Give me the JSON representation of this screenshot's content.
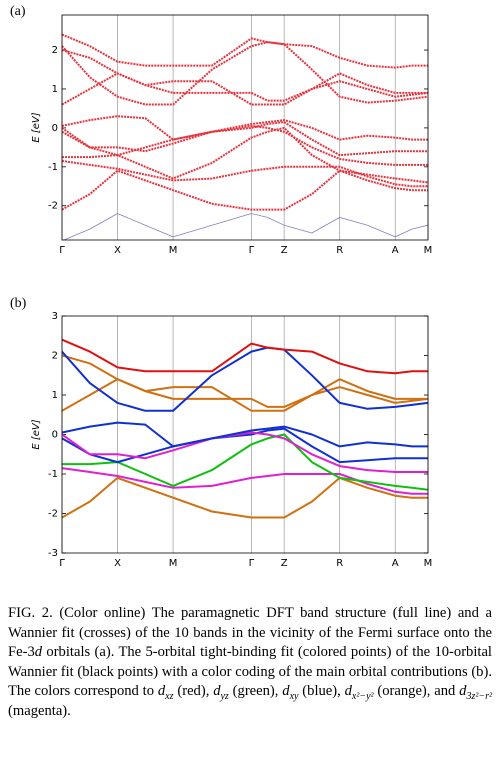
{
  "chart_data": [
    {
      "type": "line",
      "panel_label": "(a)",
      "ylabel": "E [eV]",
      "x": [
        0,
        0.5,
        1,
        1.5,
        2,
        2.7,
        3.41,
        3.7,
        4,
        4.5,
        5,
        5.5,
        6,
        6.3,
        6.59
      ],
      "xlim": [
        0,
        6.59
      ],
      "ylim": [
        -2.88,
        2.9
      ],
      "xticks": [
        {
          "value": 0,
          "label": "Γ"
        },
        {
          "value": 1,
          "label": "X"
        },
        {
          "value": 2,
          "label": "M"
        },
        {
          "value": 3.41,
          "label": "Γ"
        },
        {
          "value": 4,
          "label": "Z"
        },
        {
          "value": 5,
          "label": "R"
        },
        {
          "value": 6,
          "label": "A"
        },
        {
          "value": 6.59,
          "label": "M"
        }
      ],
      "yticks": [
        -2,
        -1,
        0,
        1,
        2
      ],
      "grid": true,
      "series": [
        {
          "color": "#8080c0",
          "values": [
            -2.9,
            -2.6,
            -2.2,
            -2.5,
            -2.8,
            -2.5,
            -2.2,
            -2.3,
            -2.5,
            -2.7,
            -2.3,
            -2.5,
            -2.8,
            -2.6,
            -2.5
          ]
        },
        {
          "color": "#e8323c",
          "values": [
            -2.1,
            -1.7,
            -1.1,
            -1.35,
            -1.6,
            -1.95,
            -2.1,
            -2.1,
            -2.1,
            -1.7,
            -1.1,
            -1.35,
            -1.55,
            -1.6,
            -1.6
          ]
        },
        {
          "color": "#e8323c",
          "values": [
            -0.85,
            -0.95,
            -1.05,
            -1.2,
            -1.35,
            -1.3,
            -1.1,
            -1.05,
            -1.0,
            -1.0,
            -1.0,
            -1.25,
            -1.45,
            -1.5,
            -1.5
          ]
        },
        {
          "color": "#e8323c",
          "values": [
            -0.75,
            -0.75,
            -0.7,
            -1.0,
            -1.3,
            -0.9,
            -0.25,
            -0.1,
            0.0,
            -0.7,
            -1.1,
            -1.2,
            -1.3,
            -1.35,
            -1.4
          ]
        },
        {
          "color": "#e8323c",
          "values": [
            -0.1,
            -0.5,
            -0.7,
            -0.5,
            -0.3,
            -0.1,
            0.0,
            0.1,
            0.15,
            -0.3,
            -0.7,
            -0.65,
            -0.6,
            -0.6,
            -0.6
          ]
        },
        {
          "color": "#e8323c",
          "values": [
            0.0,
            -0.5,
            -0.5,
            -0.6,
            -0.4,
            -0.1,
            0.05,
            0.0,
            -0.1,
            -0.5,
            -0.8,
            -0.9,
            -0.95,
            -0.95,
            -0.95
          ]
        },
        {
          "color": "#e8323c",
          "values": [
            0.05,
            0.2,
            0.3,
            0.25,
            -0.3,
            -0.1,
            0.1,
            0.15,
            0.2,
            0.0,
            -0.3,
            -0.2,
            -0.25,
            -0.3,
            -0.3
          ]
        },
        {
          "color": "#e8323c",
          "values": [
            0.6,
            1.0,
            1.4,
            1.1,
            1.2,
            1.2,
            0.6,
            0.6,
            0.6,
            1.0,
            1.4,
            1.1,
            0.9,
            0.9,
            0.9
          ]
        },
        {
          "color": "#e8323c",
          "values": [
            2.0,
            1.8,
            1.4,
            1.1,
            0.9,
            0.9,
            0.9,
            0.7,
            0.7,
            1.0,
            1.2,
            1.0,
            0.8,
            0.85,
            0.9
          ]
        },
        {
          "color": "#e8323c",
          "values": [
            2.1,
            1.3,
            0.8,
            0.6,
            0.6,
            1.5,
            2.1,
            2.2,
            2.15,
            1.5,
            0.8,
            0.65,
            0.7,
            0.75,
            0.8
          ]
        },
        {
          "color": "#e8323c",
          "values": [
            2.4,
            2.1,
            1.7,
            1.6,
            1.6,
            1.6,
            2.3,
            2.2,
            2.15,
            2.1,
            1.8,
            1.6,
            1.55,
            1.6,
            1.6
          ]
        }
      ]
    },
    {
      "type": "line",
      "panel_label": "(b)",
      "ylabel": "E [eV]",
      "x": [
        0,
        0.5,
        1,
        1.5,
        2,
        2.7,
        3.41,
        3.7,
        4,
        4.5,
        5,
        5.5,
        6,
        6.3,
        6.59
      ],
      "xlim": [
        0,
        6.59
      ],
      "ylim": [
        -3,
        3
      ],
      "xticks": [
        {
          "value": 0,
          "label": "Γ"
        },
        {
          "value": 1,
          "label": "X"
        },
        {
          "value": 2,
          "label": "M"
        },
        {
          "value": 3.41,
          "label": "Γ"
        },
        {
          "value": 4,
          "label": "Z"
        },
        {
          "value": 5,
          "label": "R"
        },
        {
          "value": 6,
          "label": "A"
        },
        {
          "value": 6.59,
          "label": "M"
        }
      ],
      "yticks": [
        -3,
        -2,
        -1,
        0,
        1,
        2,
        3
      ],
      "grid": true,
      "series": [
        {
          "color": "#d07010",
          "values": [
            -2.1,
            -1.7,
            -1.1,
            -1.35,
            -1.6,
            -1.95,
            -2.1,
            -2.1,
            -2.1,
            -1.7,
            -1.1,
            -1.35,
            -1.55,
            -1.6,
            -1.6
          ]
        },
        {
          "color": "#e020d0",
          "values": [
            -0.85,
            -0.95,
            -1.05,
            -1.2,
            -1.35,
            -1.3,
            -1.1,
            -1.05,
            -1.0,
            -1.0,
            -1.0,
            -1.25,
            -1.45,
            -1.5,
            -1.5
          ]
        },
        {
          "color": "#10c010",
          "values": [
            -0.75,
            -0.75,
            -0.7,
            -1.0,
            -1.3,
            -0.9,
            -0.25,
            -0.1,
            0.0,
            -0.7,
            -1.1,
            -1.2,
            -1.3,
            -1.35,
            -1.4
          ]
        },
        {
          "color": "#1030d0",
          "values": [
            -0.1,
            -0.5,
            -0.7,
            -0.5,
            -0.3,
            -0.1,
            0.0,
            0.1,
            0.15,
            -0.3,
            -0.7,
            -0.65,
            -0.6,
            -0.6,
            -0.6
          ]
        },
        {
          "color": "#e020d0",
          "values": [
            0.0,
            -0.5,
            -0.5,
            -0.6,
            -0.4,
            -0.1,
            0.05,
            0.0,
            -0.1,
            -0.5,
            -0.8,
            -0.9,
            -0.95,
            -0.95,
            -0.95
          ]
        },
        {
          "color": "#1030d0",
          "values": [
            0.05,
            0.2,
            0.3,
            0.25,
            -0.3,
            -0.1,
            0.1,
            0.15,
            0.2,
            0.0,
            -0.3,
            -0.2,
            -0.25,
            -0.3,
            -0.3
          ]
        },
        {
          "color": "#d07010",
          "values": [
            0.6,
            1.0,
            1.4,
            1.1,
            1.2,
            1.2,
            0.6,
            0.6,
            0.6,
            1.0,
            1.4,
            1.1,
            0.9,
            0.9,
            0.9
          ]
        },
        {
          "color": "#d07010",
          "values": [
            2.0,
            1.8,
            1.4,
            1.1,
            0.9,
            0.9,
            0.9,
            0.7,
            0.7,
            1.0,
            1.2,
            1.0,
            0.8,
            0.85,
            0.9
          ]
        },
        {
          "color": "#1030d0",
          "values": [
            2.1,
            1.3,
            0.8,
            0.6,
            0.6,
            1.5,
            2.1,
            2.2,
            2.15,
            1.5,
            0.8,
            0.65,
            0.7,
            0.75,
            0.8
          ]
        },
        {
          "color": "#e01010",
          "values": [
            2.4,
            2.1,
            1.7,
            1.6,
            1.6,
            1.6,
            2.3,
            2.2,
            2.15,
            2.1,
            1.8,
            1.6,
            1.55,
            1.6,
            1.6
          ]
        }
      ]
    }
  ],
  "caption": [
    {
      "text": "FIG. 2. (Color online) The paramagnetic DFT band structure (full line) and a Wannier fit (crosses) of the 10 bands in the vicinity of the Fermi surface onto the Fe-3",
      "style": "roman"
    },
    {
      "text": "d",
      "style": "italic"
    },
    {
      "text": " orbitals (a). The 5-orbital tight-binding fit (colored points) of the 10-orbital Wannier fit (black points) with a color coding of the main orbital contributions (b). The colors correspond to ",
      "style": "roman"
    },
    {
      "text": "d",
      "style": "italic"
    },
    {
      "text": "xz",
      "style": "sub"
    },
    {
      "text": " (red), ",
      "style": "roman"
    },
    {
      "text": "d",
      "style": "italic"
    },
    {
      "text": "yz",
      "style": "sub"
    },
    {
      "text": " (green), ",
      "style": "roman"
    },
    {
      "text": "d",
      "style": "italic"
    },
    {
      "text": "xy",
      "style": "sub"
    },
    {
      "text": " (blue), ",
      "style": "roman"
    },
    {
      "text": "d",
      "style": "italic"
    },
    {
      "text": "x²−y²",
      "style": "sub"
    },
    {
      "text": " (orange), and ",
      "style": "roman"
    },
    {
      "text": "d",
      "style": "italic"
    },
    {
      "text": "3z²−r²",
      "style": "sub"
    },
    {
      "text": " (magenta).",
      "style": "roman"
    }
  ]
}
